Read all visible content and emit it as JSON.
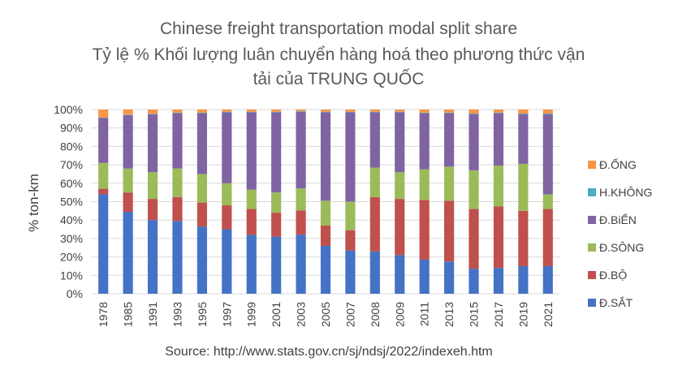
{
  "chart_data": {
    "type": "bar",
    "stacked": true,
    "percent_stacked": true,
    "title": "Chinese freight transportation modal split share",
    "subtitle_lines": [
      "Tỷ lệ % Khối lượng luân chuyển hàng hoá theo phương thức vận",
      "tải của TRUNG QUỐC"
    ],
    "ylabel": "% ton-km",
    "ylim": [
      0,
      100
    ],
    "yticks": [
      "0%",
      "10%",
      "20%",
      "30%",
      "40%",
      "50%",
      "60%",
      "70%",
      "80%",
      "90%",
      "100%"
    ],
    "grid": true,
    "legend_position": "right",
    "source": "Source: http://www.stats.gov.cn/sj/ndsj/2022/indexeh.htm",
    "categories": [
      "1978",
      "1985",
      "1991",
      "1993",
      "1995",
      "1997",
      "1999",
      "2001",
      "2003",
      "2005",
      "2007",
      "2008",
      "2009",
      "2011",
      "2013",
      "2015",
      "2017",
      "2019",
      "2021"
    ],
    "series": [
      {
        "name": "Đ.SẮT",
        "color": "#4472c4",
        "values": [
          54,
          44.5,
          40,
          39.5,
          36.5,
          35,
          32,
          31,
          32,
          26,
          23.5,
          23,
          21,
          18.5,
          17.5,
          13.5,
          14,
          15,
          15
        ]
      },
      {
        "name": "Đ.BỘ",
        "color": "#c0504d",
        "values": [
          3,
          10.5,
          11.5,
          13,
          13,
          13,
          14,
          13,
          13,
          11,
          11,
          29.5,
          30.5,
          32.5,
          33,
          32.5,
          33.5,
          30,
          31
        ]
      },
      {
        "name": "Đ.SÔNG",
        "color": "#9bbb59",
        "values": [
          14,
          13,
          14.5,
          15.5,
          15.5,
          12,
          10.5,
          11,
          12,
          13.5,
          15.5,
          16,
          14.5,
          16.5,
          18.5,
          21,
          22,
          25.5,
          8
        ]
      },
      {
        "name": "Đ.BiỂN",
        "color": "#8064a2",
        "values": [
          24.5,
          29,
          31.5,
          30,
          33,
          38.5,
          42,
          43.5,
          41.5,
          48,
          48.5,
          30,
          32.5,
          30.5,
          29,
          30.5,
          28.5,
          27,
          43.5
        ]
      },
      {
        "name": "H.KHÔNG",
        "color": "#4bacc6",
        "values": [
          0.1,
          0.2,
          0.2,
          0.3,
          0.3,
          0.3,
          0.3,
          0.3,
          0.3,
          0.3,
          0.3,
          0.3,
          0.3,
          0.3,
          0.3,
          0.3,
          0.3,
          0.3,
          0.3
        ]
      },
      {
        "name": "Đ.ỐNG",
        "color": "#f79646",
        "values": [
          4.4,
          2.8,
          2.3,
          1.7,
          1.7,
          1.2,
          1.2,
          1.2,
          0.9,
          1.2,
          1.2,
          1.2,
          1.2,
          1.7,
          1.7,
          2.2,
          1.7,
          2.2,
          2.2
        ]
      }
    ],
    "legend_order": [
      "Đ.ỐNG",
      "H.KHÔNG",
      "Đ.BiỂN",
      "Đ.SÔNG",
      "Đ.BỘ",
      "Đ.SẮT"
    ]
  }
}
